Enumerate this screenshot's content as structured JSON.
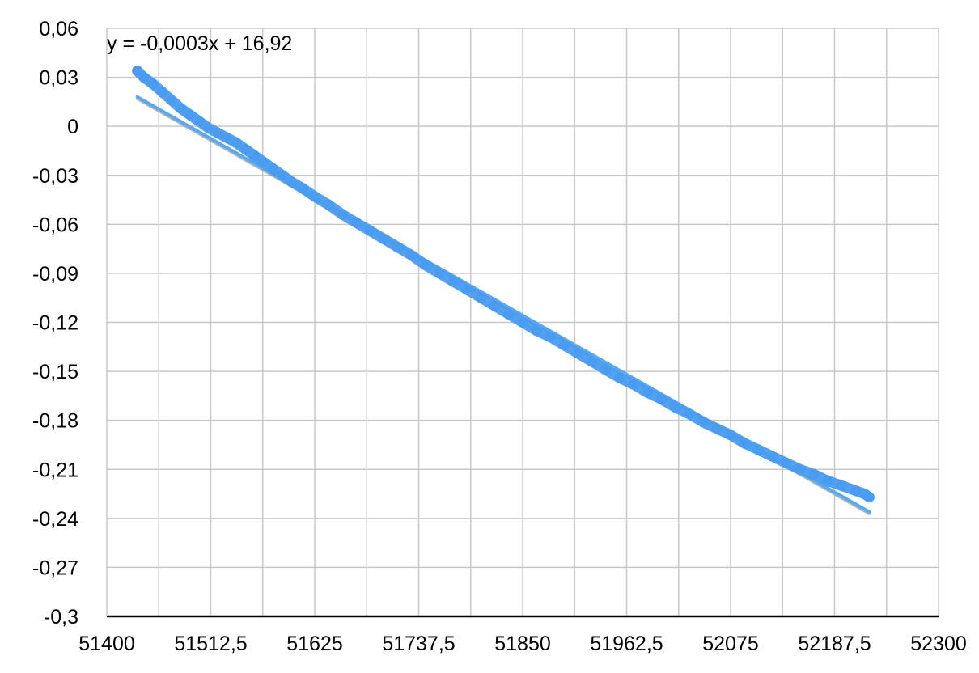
{
  "chart_data": {
    "type": "scatter",
    "title": "",
    "xlabel": "",
    "ylabel": "",
    "xlim": [
      51400,
      52300
    ],
    "ylim": [
      -0.3,
      0.06
    ],
    "x_ticks": [
      51400,
      51512.5,
      51625,
      51737.5,
      51850,
      51962.5,
      52075,
      52187.5,
      52300
    ],
    "x_tick_labels": [
      "51400",
      "51512,5",
      "51625",
      "51737,5",
      "51850",
      "51962,5",
      "52075",
      "52187,5",
      "52300"
    ],
    "x_minor_gridlines": [
      51456.25,
      51568.75,
      51681.25,
      51793.75,
      51906.25,
      52018.75,
      52131.25,
      52243.75
    ],
    "y_ticks": [
      0.06,
      0.03,
      0,
      -0.03,
      -0.06,
      -0.09,
      -0.12,
      -0.15,
      -0.18,
      -0.21,
      -0.24,
      -0.27,
      -0.3
    ],
    "y_tick_labels": [
      "0,06",
      "0,03",
      "0",
      "-0,03",
      "-0,06",
      "-0,09",
      "-0,12",
      "-0,15",
      "-0,18",
      "-0,21",
      "-0,24",
      "-0,27",
      "-0,3"
    ],
    "grid": true,
    "legend": "none",
    "series": [
      {
        "color": "#4a9cf0",
        "points": [
          [
            51433,
            0.034
          ],
          [
            51440,
            0.03
          ],
          [
            51450,
            0.026
          ],
          [
            51460,
            0.021
          ],
          [
            51470,
            0.016
          ],
          [
            51480,
            0.011
          ],
          [
            51490,
            0.007
          ],
          [
            51500,
            0.003
          ],
          [
            51510,
            -0.001
          ],
          [
            51520,
            -0.004
          ],
          [
            51530,
            -0.007
          ],
          [
            51540,
            -0.01
          ],
          [
            51550,
            -0.014
          ],
          [
            51560,
            -0.018
          ],
          [
            51570,
            -0.022
          ],
          [
            51580,
            -0.026
          ],
          [
            51590,
            -0.03
          ],
          [
            51600,
            -0.034
          ],
          [
            51612,
            -0.038
          ],
          [
            51625,
            -0.043
          ],
          [
            51640,
            -0.048
          ],
          [
            51655,
            -0.054
          ],
          [
            51670,
            -0.059
          ],
          [
            51685,
            -0.064
          ],
          [
            51700,
            -0.069
          ],
          [
            51715,
            -0.074
          ],
          [
            51730,
            -0.079
          ],
          [
            51745,
            -0.085
          ],
          [
            51760,
            -0.09
          ],
          [
            51775,
            -0.095
          ],
          [
            51790,
            -0.1
          ],
          [
            51805,
            -0.105
          ],
          [
            51820,
            -0.11
          ],
          [
            51835,
            -0.115
          ],
          [
            51850,
            -0.12
          ],
          [
            51865,
            -0.125
          ],
          [
            51880,
            -0.129
          ],
          [
            51895,
            -0.134
          ],
          [
            51910,
            -0.139
          ],
          [
            51925,
            -0.144
          ],
          [
            51940,
            -0.149
          ],
          [
            51955,
            -0.154
          ],
          [
            51970,
            -0.158
          ],
          [
            51985,
            -0.163
          ],
          [
            52000,
            -0.167
          ],
          [
            52015,
            -0.172
          ],
          [
            52030,
            -0.176
          ],
          [
            52045,
            -0.181
          ],
          [
            52060,
            -0.185
          ],
          [
            52075,
            -0.189
          ],
          [
            52090,
            -0.194
          ],
          [
            52105,
            -0.198
          ],
          [
            52120,
            -0.202
          ],
          [
            52135,
            -0.206
          ],
          [
            52150,
            -0.21
          ],
          [
            52165,
            -0.213
          ],
          [
            52180,
            -0.217
          ],
          [
            52195,
            -0.22
          ],
          [
            52210,
            -0.223
          ],
          [
            52220,
            -0.225
          ],
          [
            52225,
            -0.227
          ]
        ]
      }
    ],
    "trendline": {
      "color": "#5aa9ee",
      "from": [
        51433,
        0.018
      ],
      "to": [
        52225,
        -0.236
      ]
    },
    "annotation": "y = -0,0003x + 16,92"
  }
}
